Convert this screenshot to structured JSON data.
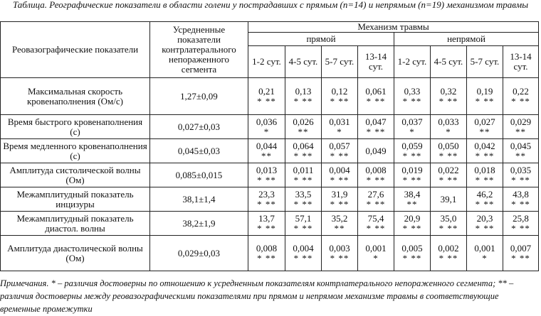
{
  "caption": "Таблица. Реографические показатели в области голени у пострадавших с прямым (n=14) и непрямым (n=19) механизмом травмы",
  "header": {
    "indicators": "Реовазографические показатели",
    "averaged": "Усредненные показатели контрлатерального непораженного сегмента",
    "mechanism": "Механизм травмы",
    "direct": "прямой",
    "indirect": "непрямой",
    "periods": [
      "1-2 сут.",
      "4-5 сут.",
      "5-7 сут.",
      "13-14 сут.",
      "1-2 сут.",
      "4-5 сут.",
      "5-7 сут.",
      "13-14 сут."
    ]
  },
  "rows": [
    {
      "name": "Максимальная скорость кровенаполнения (Ом/с)",
      "base": "1,27±0,09",
      "cells": [
        {
          "v": "0,21",
          "s": "* **"
        },
        {
          "v": "0,13",
          "s": "* **"
        },
        {
          "v": "0,12",
          "s": "* **"
        },
        {
          "v": "0,061",
          "s": "* **"
        },
        {
          "v": "0,33",
          "s": "* **"
        },
        {
          "v": "0,32",
          "s": "* **"
        },
        {
          "v": "0,19",
          "s": "* **"
        },
        {
          "v": "0,22",
          "s": "* **"
        }
      ]
    },
    {
      "name": "Время быстрого кровенаполнения (с)",
      "base": "0,027±0,03",
      "cells": [
        {
          "v": "0,036",
          "s": "*"
        },
        {
          "v": "0,026",
          "s": "**"
        },
        {
          "v": "0,031",
          "s": "*"
        },
        {
          "v": "0,047",
          "s": "* **"
        },
        {
          "v": "0,037",
          "s": "*"
        },
        {
          "v": "0,033",
          "s": "*"
        },
        {
          "v": "0,027",
          "s": "**"
        },
        {
          "v": "0,029",
          "s": "**"
        }
      ]
    },
    {
      "name": "Время медленного кровенаполнения (с)",
      "base": "0,045±0,03",
      "cells": [
        {
          "v": "0,044",
          "s": "**"
        },
        {
          "v": "0,064",
          "s": "* **"
        },
        {
          "v": "0,057",
          "s": "* **"
        },
        {
          "v": "0,049",
          "s": ""
        },
        {
          "v": "0,059",
          "s": "* **"
        },
        {
          "v": "0,050",
          "s": "* **"
        },
        {
          "v": "0,042",
          "s": "* **"
        },
        {
          "v": "0,045",
          "s": "**"
        }
      ]
    },
    {
      "name": "Амплитуда систолической волны (Ом)",
      "base": "0,085±0,015",
      "cells": [
        {
          "v": "0,013",
          "s": "* **"
        },
        {
          "v": "0,011",
          "s": "* **"
        },
        {
          "v": "0,004",
          "s": "* **"
        },
        {
          "v": "0,008",
          "s": "* **"
        },
        {
          "v": "0,019",
          "s": "* **"
        },
        {
          "v": "0,022",
          "s": "* **"
        },
        {
          "v": "0,018",
          "s": "* **"
        },
        {
          "v": "0,035",
          "s": "* **"
        }
      ]
    },
    {
      "name": "Межамплитудный показатель инцизуры",
      "base": "38,1±1,4",
      "cells": [
        {
          "v": "23,3",
          "s": "* **"
        },
        {
          "v": "33,5",
          "s": "* **"
        },
        {
          "v": "31,9",
          "s": "* **"
        },
        {
          "v": "27,6",
          "s": "* **"
        },
        {
          "v": "38,4",
          "s": "**"
        },
        {
          "v": "39,1",
          "s": ""
        },
        {
          "v": "46,2",
          "s": "* **"
        },
        {
          "v": "43,8",
          "s": "* **"
        }
      ]
    },
    {
      "name": "Межамплитудный показатель диастол. волны",
      "base": "38,2±1,9",
      "cells": [
        {
          "v": "13,7",
          "s": "* **"
        },
        {
          "v": "57,1",
          "s": "* **"
        },
        {
          "v": "35,2",
          "s": "**"
        },
        {
          "v": "75,4",
          "s": "* **"
        },
        {
          "v": "20,9",
          "s": "* **"
        },
        {
          "v": "35,0",
          "s": "* **"
        },
        {
          "v": "20,3",
          "s": "* **"
        },
        {
          "v": "25,8",
          "s": "* **"
        }
      ]
    },
    {
      "name": "Амплитуда диастолической волны (Ом)",
      "base": "0,029±0,03",
      "cells": [
        {
          "v": "0,008",
          "s": "* **"
        },
        {
          "v": "0,004",
          "s": "* **"
        },
        {
          "v": "0,003",
          "s": "* **"
        },
        {
          "v": "0,001",
          "s": "*"
        },
        {
          "v": "0,005",
          "s": "* **"
        },
        {
          "v": "0,002",
          "s": "* **"
        },
        {
          "v": "0,001",
          "s": "*"
        },
        {
          "v": "0,007",
          "s": "* **"
        }
      ]
    }
  ],
  "notes": "Примечания. * – различия достоверны по отношению к усредненным показателям контрлатерального непораженного сегмента; ** – различия достоверны между реовазографическими показателями при прямом и непрямом механизме травмы в соответствующие временные промежутки"
}
